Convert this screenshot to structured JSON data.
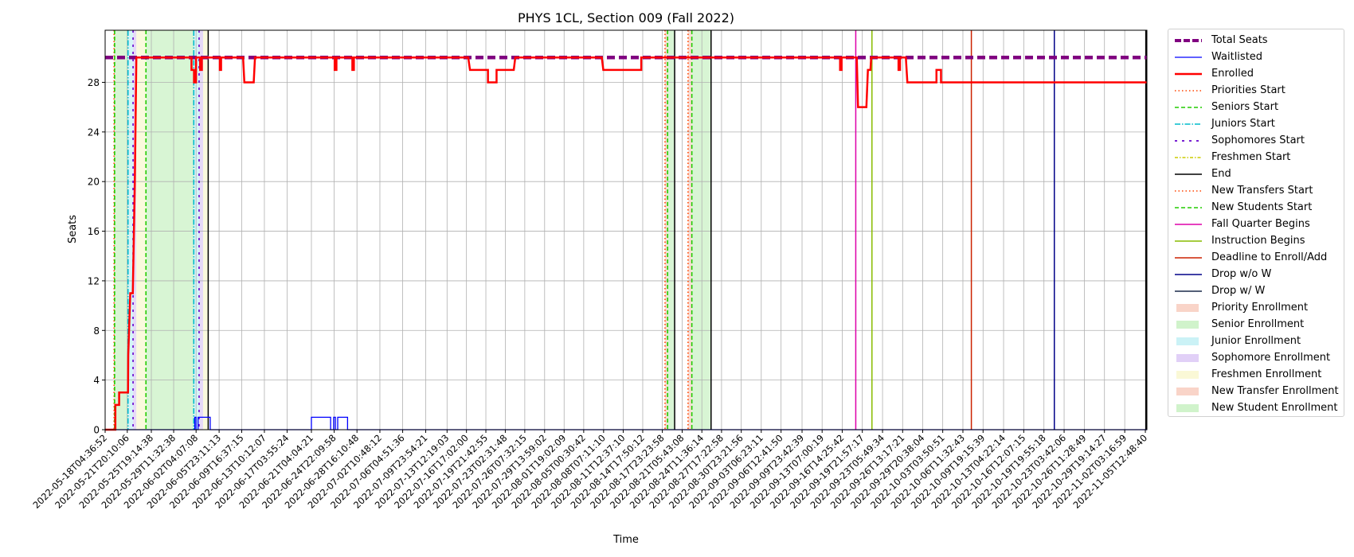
{
  "chart_data": {
    "type": "line",
    "title": "PHYS 1CL, Section 009 (Fall 2022)",
    "xlabel": "Time",
    "ylabel": "Seats",
    "x_start": "2022-05-18T04:36:52",
    "x_end": "2022-11-05T19:00:00",
    "ylim": [
      0,
      32.2
    ],
    "yticks": [
      0,
      4,
      8,
      12,
      16,
      20,
      24,
      28
    ],
    "xticks": [
      "2022-05-18T04:36:52",
      "2022-05-21T20:10:06",
      "2022-05-25T19:14:38",
      "2022-05-29T11:32:38",
      "2022-06-02T04:07:08",
      "2022-06-05T23:11:13",
      "2022-06-09T16:37:15",
      "2022-06-13T10:12:07",
      "2022-06-17T03:55:24",
      "2022-06-21T04:04:21",
      "2022-06-24T22:09:58",
      "2022-06-28T16:10:48",
      "2022-07-02T10:48:12",
      "2022-07-06T04:51:36",
      "2022-07-09T23:54:21",
      "2022-07-13T12:19:03",
      "2022-07-16T17:02:00",
      "2022-07-19T21:42:55",
      "2022-07-23T02:31:48",
      "2022-07-26T07:32:15",
      "2022-07-29T13:59:02",
      "2022-08-01T19:02:09",
      "2022-08-05T00:30:42",
      "2022-08-08T07:11:10",
      "2022-08-11T12:37:10",
      "2022-08-14T17:50:12",
      "2022-08-17T23:23:58",
      "2022-08-21T05:43:08",
      "2022-08-24T11:36:14",
      "2022-08-27T17:22:58",
      "2022-08-30T23:21:56",
      "2022-09-03T06:23:11",
      "2022-09-06T12:41:50",
      "2022-09-09T23:42:39",
      "2022-09-13T07:00:19",
      "2022-09-16T14:25:42",
      "2022-09-19T21:57:17",
      "2022-09-23T05:49:34",
      "2022-09-26T13:17:21",
      "2022-09-29T20:38:04",
      "2022-10-03T03:50:51",
      "2022-10-06T11:32:43",
      "2022-10-09T19:15:39",
      "2022-10-13T04:22:14",
      "2022-10-16T12:07:15",
      "2022-10-19T19:55:18",
      "2022-10-23T03:42:06",
      "2022-10-26T11:28:49",
      "2022-10-29T19:14:27",
      "2022-11-02T03:16:59",
      "2022-11-05T12:48:40"
    ],
    "grid": true,
    "legend_position": "outside right",
    "series": [
      {
        "name": "Total Seats",
        "color": "#800080",
        "style": "dashed-thick",
        "points": [
          [
            "2022-05-18T04:36:52",
            30
          ],
          [
            "2022-11-05T19:00:00",
            30
          ]
        ]
      },
      {
        "name": "Waitlisted",
        "color": "#0000ff",
        "style": "step",
        "points": [
          [
            "2022-05-18T04:36:52",
            0
          ],
          [
            "2022-06-01T23:00:00",
            0
          ],
          [
            "2022-06-01T23:00:00",
            1
          ],
          [
            "2022-06-02T04:00:00",
            1
          ],
          [
            "2022-06-02T04:00:00",
            0
          ],
          [
            "2022-06-02T12:00:00",
            0
          ],
          [
            "2022-06-02T12:00:00",
            1
          ],
          [
            "2022-06-04T12:00:00",
            1
          ],
          [
            "2022-06-04T12:00:00",
            0
          ],
          [
            "2022-06-21T04:00:00",
            0
          ],
          [
            "2022-06-21T04:00:00",
            1
          ],
          [
            "2022-06-24T08:00:00",
            1
          ],
          [
            "2022-06-24T08:00:00",
            0
          ],
          [
            "2022-06-24T20:00:00",
            0
          ],
          [
            "2022-06-24T20:00:00",
            1
          ],
          [
            "2022-06-25T03:00:00",
            1
          ],
          [
            "2022-06-25T03:00:00",
            0
          ],
          [
            "2022-06-25T12:00:00",
            0
          ],
          [
            "2022-06-25T12:00:00",
            1
          ],
          [
            "2022-06-27T03:00:00",
            1
          ],
          [
            "2022-06-27T03:00:00",
            0
          ],
          [
            "2022-11-05T19:00:00",
            0
          ]
        ]
      },
      {
        "name": "Enrolled",
        "color": "#ff0000",
        "style": "step",
        "points": [
          [
            "2022-05-18T04:36:52",
            0
          ],
          [
            "2022-05-19T21:00:00",
            0
          ],
          [
            "2022-05-19T21:00:00",
            2
          ],
          [
            "2022-05-20T12:00:00",
            2
          ],
          [
            "2022-05-20T12:00:00",
            3
          ],
          [
            "2022-05-21T23:00:00",
            3
          ],
          [
            "2022-05-22T00:00:00",
            6
          ],
          [
            "2022-05-22T08:00:00",
            11
          ],
          [
            "2022-05-22T18:00:00",
            11
          ],
          [
            "2022-05-23T02:00:00",
            20
          ],
          [
            "2022-05-23T08:00:00",
            30
          ],
          [
            "2022-06-01T10:00:00",
            30
          ],
          [
            "2022-06-01T10:00:00",
            29
          ],
          [
            "2022-06-01T20:00:00",
            29
          ],
          [
            "2022-06-01T20:00:00",
            28
          ],
          [
            "2022-06-02T04:00:00",
            28
          ],
          [
            "2022-06-02T04:00:00",
            30
          ],
          [
            "2022-06-02T20:00:00",
            30
          ],
          [
            "2022-06-02T20:00:00",
            29
          ],
          [
            "2022-06-03T03:00:00",
            29
          ],
          [
            "2022-06-03T03:00:00",
            30
          ],
          [
            "2022-06-06T02:00:00",
            30
          ],
          [
            "2022-06-06T02:00:00",
            29
          ],
          [
            "2022-06-06T07:00:00",
            29
          ],
          [
            "2022-06-06T07:00:00",
            30
          ],
          [
            "2022-06-09T22:00:00",
            30
          ],
          [
            "2022-06-10T03:00:00",
            28
          ],
          [
            "2022-06-11T16:00:00",
            28
          ],
          [
            "2022-06-11T21:00:00",
            30
          ],
          [
            "2022-06-25T00:00:00",
            30
          ],
          [
            "2022-06-25T00:00:00",
            29
          ],
          [
            "2022-06-25T07:00:00",
            29
          ],
          [
            "2022-06-25T07:00:00",
            30
          ],
          [
            "2022-06-27T22:00:00",
            30
          ],
          [
            "2022-06-27T22:00:00",
            29
          ],
          [
            "2022-06-28T04:00:00",
            29
          ],
          [
            "2022-06-28T04:00:00",
            30
          ],
          [
            "2022-07-17T00:00:00",
            30
          ],
          [
            "2022-07-17T07:00:00",
            29
          ],
          [
            "2022-07-20T06:00:00",
            29
          ],
          [
            "2022-07-20T06:00:00",
            28
          ],
          [
            "2022-07-21T16:00:00",
            28
          ],
          [
            "2022-07-21T16:00:00",
            29
          ],
          [
            "2022-07-24T12:00:00",
            29
          ],
          [
            "2022-07-24T18:00:00",
            30
          ],
          [
            "2022-08-08T00:00:00",
            30
          ],
          [
            "2022-08-08T06:00:00",
            29
          ],
          [
            "2022-08-14T12:00:00",
            29
          ],
          [
            "2022-08-14T12:00:00",
            30
          ],
          [
            "2022-09-16T06:00:00",
            30
          ],
          [
            "2022-09-16T06:00:00",
            29
          ],
          [
            "2022-09-16T12:00:00",
            29
          ],
          [
            "2022-09-16T12:00:00",
            30
          ],
          [
            "2022-09-19T00:00:00",
            30
          ],
          [
            "2022-09-19T05:00:00",
            26
          ],
          [
            "2022-09-20T14:00:00",
            26
          ],
          [
            "2022-09-20T16:00:00",
            27
          ],
          [
            "2022-09-20T20:00:00",
            29
          ],
          [
            "2022-09-21T06:00:00",
            29
          ],
          [
            "2022-09-21T09:00:00",
            30
          ],
          [
            "2022-09-25T21:00:00",
            30
          ],
          [
            "2022-09-25T21:00:00",
            29
          ],
          [
            "2022-09-26T03:00:00",
            29
          ],
          [
            "2022-09-26T03:00:00",
            30
          ],
          [
            "2022-09-27T02:00:00",
            30
          ],
          [
            "2022-09-27T08:00:00",
            28
          ],
          [
            "2022-10-02T03:00:00",
            28
          ],
          [
            "2022-10-02T03:00:00",
            29
          ],
          [
            "2022-10-02T21:00:00",
            29
          ],
          [
            "2022-10-02T21:00:00",
            28
          ],
          [
            "2022-11-05T19:00:00",
            28
          ]
        ]
      }
    ],
    "event_lines": [
      {
        "name": "Priorities Start",
        "color": "#ff4500",
        "style": "dotted",
        "times": [
          "2022-05-19T16:00:00",
          "2022-08-18T10:00:00"
        ]
      },
      {
        "name": "Seniors Start",
        "color": "#22cc00",
        "style": "dashed",
        "times": [
          "2022-05-19T18:00:00",
          "2022-05-24T22:00:00",
          "2022-08-18T20:00:00"
        ]
      },
      {
        "name": "Juniors Start",
        "color": "#00bbcc",
        "style": "dashdot",
        "times": [
          "2022-05-21T23:00:00",
          "2022-06-01T19:00:00"
        ]
      },
      {
        "name": "Sophomores Start",
        "color": "#6600cc",
        "style": "densedash",
        "times": [
          "2022-05-22T19:00:00",
          "2022-06-02T16:00:00"
        ]
      },
      {
        "name": "Freshmen Start",
        "color": "#cccc00",
        "style": "dashdot",
        "times": []
      },
      {
        "name": "End",
        "color": "#000000",
        "style": "solid",
        "times": [
          "2022-06-04T04:00:00",
          "2022-08-20T00:00:00",
          "2022-08-26T00:00:00",
          "2022-11-05T15:00:00"
        ]
      },
      {
        "name": "New Transfers Start",
        "color": "#ff4500",
        "style": "dotted",
        "times": [
          "2022-08-22T05:00:00"
        ]
      },
      {
        "name": "New Students Start",
        "color": "#22cc00",
        "style": "dashed",
        "times": [
          "2022-08-22T20:00:00"
        ]
      },
      {
        "name": "Fall Quarter Begins",
        "color": "#dd00aa",
        "style": "solid",
        "times": [
          "2022-09-18T20:00:00"
        ]
      },
      {
        "name": "Instruction Begins",
        "color": "#88bb00",
        "style": "solid",
        "times": [
          "2022-09-21T12:00:00"
        ]
      },
      {
        "name": "Deadline to Enroll/Add",
        "color": "#cc2200",
        "style": "solid",
        "times": [
          "2022-10-07T21:00:00"
        ]
      },
      {
        "name": "Drop w/o W",
        "color": "#000088",
        "style": "solid",
        "times": [
          "2022-10-21T13:00:00"
        ]
      },
      {
        "name": "Drop w/ W",
        "color": "#1a2a4a",
        "style": "solid",
        "times": []
      }
    ],
    "spans": [
      {
        "name": "Priority Enrollment",
        "color": "#f4b09a",
        "ranges": [
          [
            "2022-05-19T16:00:00",
            "2022-05-19T18:00:00"
          ],
          [
            "2022-08-18T10:00:00",
            "2022-08-18T20:00:00"
          ]
        ]
      },
      {
        "name": "Senior Enrollment",
        "color": "#a9e9a0",
        "ranges": [
          [
            "2022-05-19T18:00:00",
            "2022-05-21T23:00:00"
          ],
          [
            "2022-05-24T22:00:00",
            "2022-06-01T19:00:00"
          ],
          [
            "2022-08-18T20:00:00",
            "2022-08-20T00:00:00"
          ]
        ]
      },
      {
        "name": "Junior Enrollment",
        "color": "#a0e8ee",
        "ranges": [
          [
            "2022-05-21T23:00:00",
            "2022-05-22T19:00:00"
          ],
          [
            "2022-06-01T19:00:00",
            "2022-06-02T16:00:00"
          ]
        ]
      },
      {
        "name": "Sophomore Enrollment",
        "color": "#c8aaf0",
        "ranges": [
          [
            "2022-05-22T19:00:00",
            "2022-05-23T08:00:00"
          ],
          [
            "2022-06-02T16:00:00",
            "2022-06-03T08:00:00"
          ]
        ]
      },
      {
        "name": "Freshmen Enrollment",
        "color": "#f5f3b4",
        "ranges": [
          [
            "2022-05-23T08:00:00",
            "2022-05-24T22:00:00"
          ],
          [
            "2022-06-03T08:00:00",
            "2022-06-04T04:00:00"
          ]
        ]
      },
      {
        "name": "New Transfer Enrollment",
        "color": "#f4b09a",
        "ranges": [
          [
            "2022-08-22T05:00:00",
            "2022-08-22T20:00:00"
          ]
        ]
      },
      {
        "name": "New Student Enrollment",
        "color": "#a9e9a0",
        "ranges": [
          [
            "2022-08-22T20:00:00",
            "2022-08-26T00:00:00"
          ]
        ]
      }
    ],
    "legend": [
      {
        "label": "Total Seats",
        "kind": "line",
        "color": "#800080",
        "dash": "8,3",
        "width": 4
      },
      {
        "label": "Waitlisted",
        "kind": "line",
        "color": "#0000ff",
        "dash": "",
        "width": 1.3
      },
      {
        "label": "Enrolled",
        "kind": "line",
        "color": "#ff0000",
        "dash": "",
        "width": 2.5
      },
      {
        "label": "Priorities Start",
        "kind": "line",
        "color": "#ff4500",
        "dash": "1.5,3",
        "width": 1.5
      },
      {
        "label": "Seniors Start",
        "kind": "line",
        "color": "#22cc00",
        "dash": "5,3",
        "width": 1.5
      },
      {
        "label": "Juniors Start",
        "kind": "line",
        "color": "#00bbcc",
        "dash": "7,2,1.5,2",
        "width": 1.5
      },
      {
        "label": "Sophomores Start",
        "kind": "line",
        "color": "#6600cc",
        "dash": "3,6",
        "width": 1.8
      },
      {
        "label": "Freshmen Start",
        "kind": "line",
        "color": "#cccc00",
        "dash": "4,2,1.5,2",
        "width": 1.5
      },
      {
        "label": "End",
        "kind": "line",
        "color": "#000000",
        "dash": "",
        "width": 1.5
      },
      {
        "label": "New Transfers Start",
        "kind": "line",
        "color": "#ff4500",
        "dash": "1.5,3",
        "width": 1.5
      },
      {
        "label": "New Students Start",
        "kind": "line",
        "color": "#22cc00",
        "dash": "5,3",
        "width": 1.5
      },
      {
        "label": "Fall Quarter Begins",
        "kind": "line",
        "color": "#dd00aa",
        "dash": "",
        "width": 1.5
      },
      {
        "label": "Instruction Begins",
        "kind": "line",
        "color": "#88bb00",
        "dash": "",
        "width": 1.5
      },
      {
        "label": "Deadline to Enroll/Add",
        "kind": "line",
        "color": "#cc2200",
        "dash": "",
        "width": 1.5
      },
      {
        "label": "Drop w/o W",
        "kind": "line",
        "color": "#000088",
        "dash": "",
        "width": 1.5
      },
      {
        "label": "Drop w/ W",
        "kind": "line",
        "color": "#1a2a4a",
        "dash": "",
        "width": 1.5
      },
      {
        "label": "Priority Enrollment",
        "kind": "patch",
        "color": "#f4b09a"
      },
      {
        "label": "Senior Enrollment",
        "kind": "patch",
        "color": "#a9e9a0"
      },
      {
        "label": "Junior Enrollment",
        "kind": "patch",
        "color": "#a0e8ee"
      },
      {
        "label": "Sophomore Enrollment",
        "kind": "patch",
        "color": "#c8aaf0"
      },
      {
        "label": "Freshmen Enrollment",
        "kind": "patch",
        "color": "#f5f3b4"
      },
      {
        "label": "New Transfer Enrollment",
        "kind": "patch",
        "color": "#f4b09a"
      },
      {
        "label": "New Student Enrollment",
        "kind": "patch",
        "color": "#a9e9a0"
      }
    ]
  }
}
